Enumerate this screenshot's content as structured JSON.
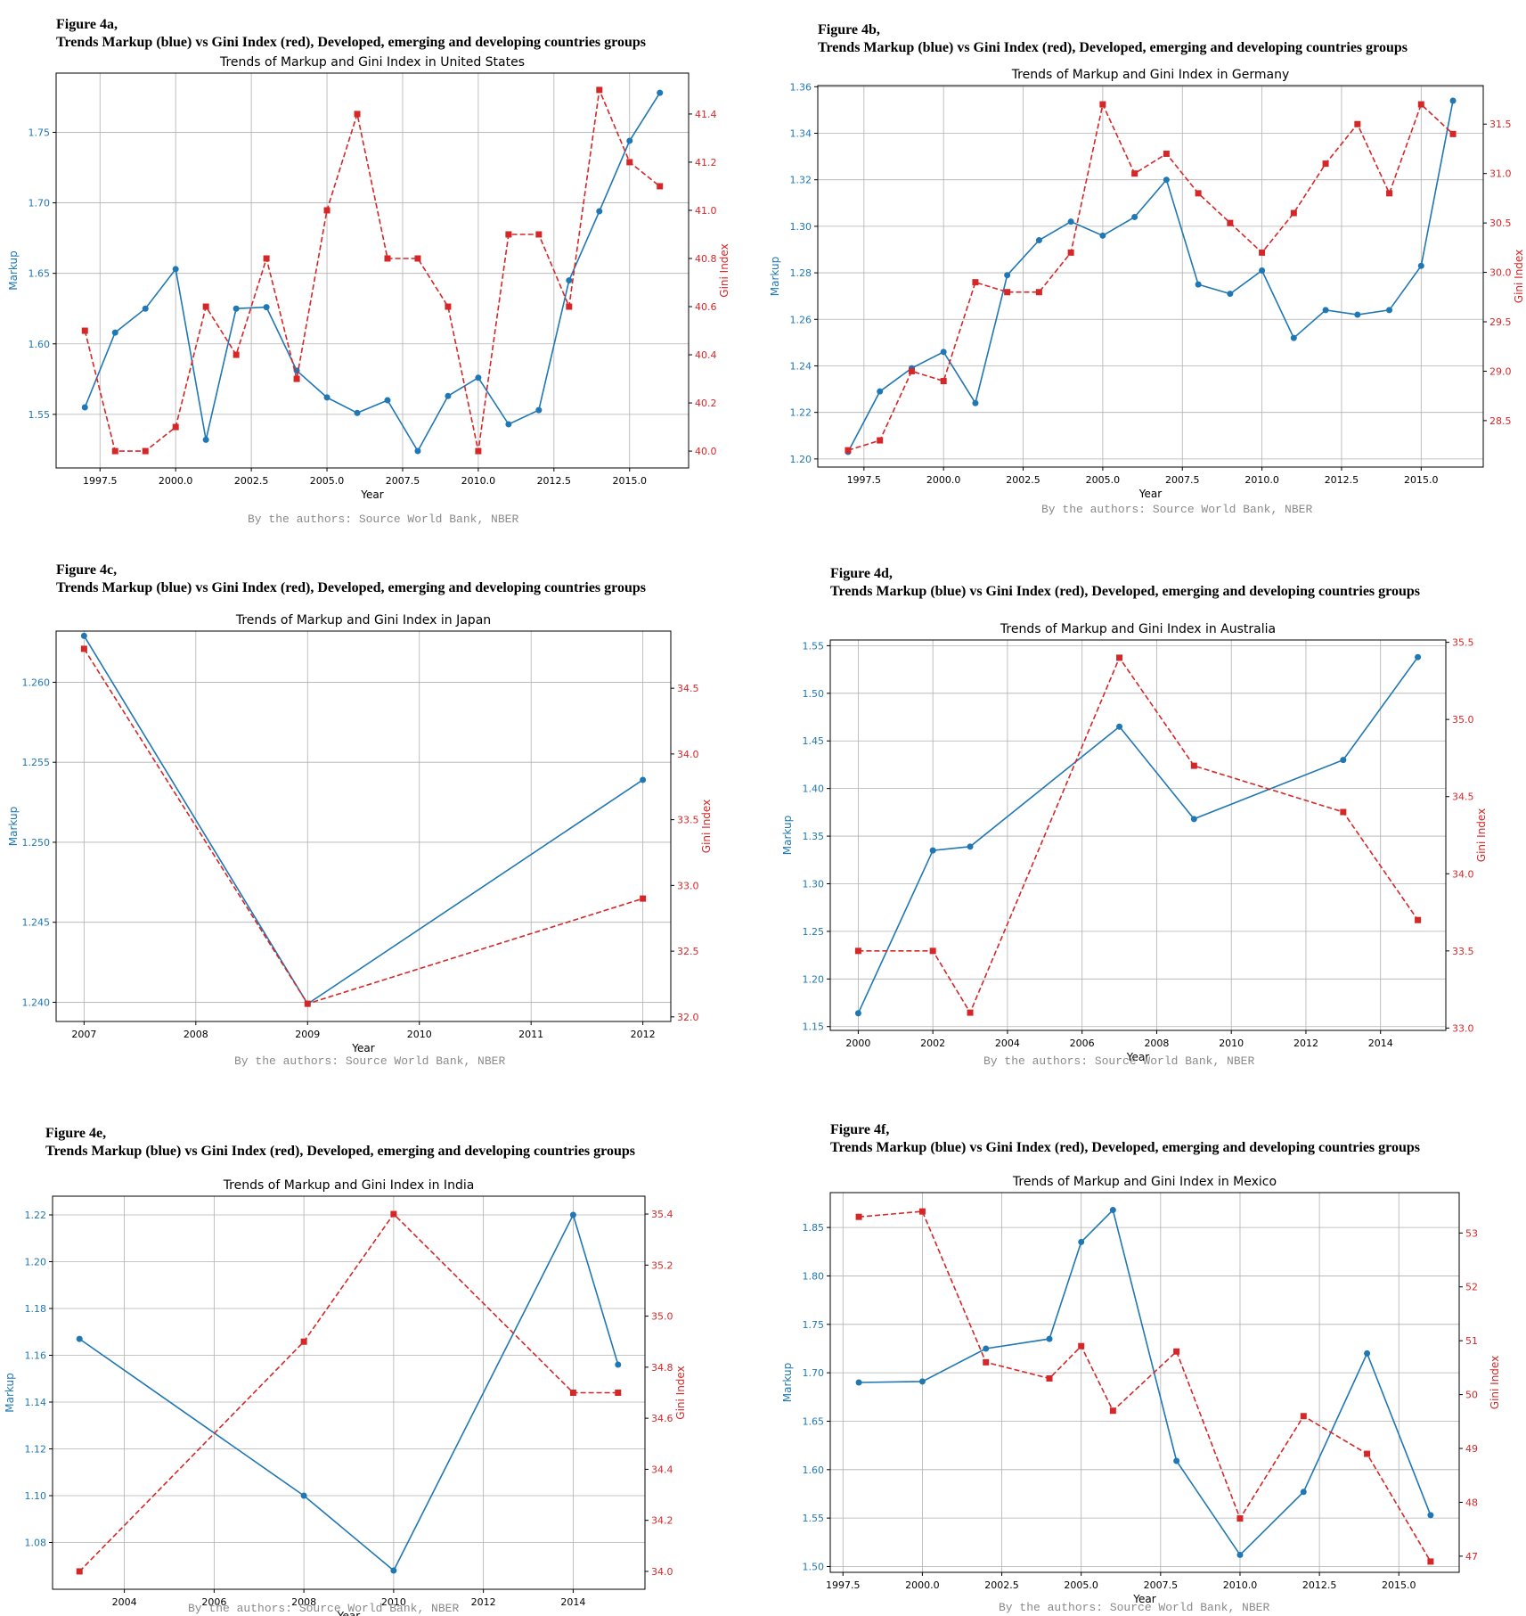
{
  "colors": {
    "markup": "#1f77b4",
    "gini": "#d62728",
    "grid": "#b0b0b0",
    "axis": "#000000"
  },
  "figures": [
    {
      "label": "Figure 4a,",
      "caption": "Trends Markup (blue) vs Gini Index (red), Developed, emerging and developing countries groups",
      "source": "By the authors: Source World Bank, NBER",
      "chart_data": {
        "type": "line",
        "title": "Trends of Markup and Gini Index in United States",
        "xlabel": "Year",
        "ylabel": "Markup",
        "y2label": "Gini Index",
        "xlim": [
          1996.05,
          2016.95
        ],
        "ylim": [
          1.512,
          1.792
        ],
        "y2lim": [
          39.93,
          41.57
        ],
        "xticks": [
          1997.5,
          2000.0,
          2002.5,
          2005.0,
          2007.5,
          2010.0,
          2012.5,
          2015.0
        ],
        "xtick_labels": [
          "1997.5",
          "2000.0",
          "2002.5",
          "2005.0",
          "2007.5",
          "2010.0",
          "2012.5",
          "2015.0"
        ],
        "yticks": [
          1.55,
          1.6,
          1.65,
          1.7,
          1.75
        ],
        "ytick_labels": [
          "1.55",
          "1.60",
          "1.65",
          "1.70",
          "1.75"
        ],
        "y2ticks": [
          40.0,
          40.2,
          40.4,
          40.6,
          40.8,
          41.0,
          41.2,
          41.4
        ],
        "y2tick_labels": [
          "40.0",
          "40.2",
          "40.4",
          "40.6",
          "40.8",
          "41.0",
          "41.2",
          "41.4"
        ],
        "grid": true,
        "series": [
          {
            "name": "Markup",
            "axis": "left",
            "style": "solid",
            "marker": "circle",
            "x": [
              1997,
              1998,
              1999,
              2000,
              2001,
              2002,
              2003,
              2004,
              2005,
              2006,
              2007,
              2008,
              2009,
              2010,
              2011,
              2012,
              2013,
              2014,
              2015,
              2016
            ],
            "values": [
              1.555,
              1.608,
              1.625,
              1.653,
              1.532,
              1.625,
              1.626,
              1.581,
              1.562,
              1.551,
              1.56,
              1.524,
              1.563,
              1.576,
              1.543,
              1.553,
              1.645,
              1.694,
              1.744,
              1.778
            ]
          },
          {
            "name": "Gini Index",
            "axis": "right",
            "style": "dashed",
            "marker": "square",
            "x": [
              1997,
              1998,
              1999,
              2000,
              2001,
              2002,
              2003,
              2004,
              2005,
              2006,
              2007,
              2008,
              2009,
              2010,
              2011,
              2012,
              2013,
              2014,
              2015,
              2016
            ],
            "values": [
              40.5,
              40.0,
              40.0,
              40.1,
              40.6,
              40.4,
              40.8,
              40.3,
              41.0,
              41.4,
              40.8,
              40.8,
              40.6,
              40.0,
              40.9,
              40.9,
              40.6,
              41.5,
              41.2,
              41.1
            ]
          }
        ]
      }
    },
    {
      "label": "Figure 4b,",
      "caption": "Trends Markup (blue) vs Gini Index (red), Developed, emerging and developing countries groups",
      "source": "By the authors: Source World Bank, NBER",
      "chart_data": {
        "type": "line",
        "title": "Trends of Markup and Gini Index in Germany",
        "xlabel": "Year",
        "ylabel": "Markup",
        "y2label": "Gini Index",
        "xlim": [
          1996.05,
          2016.95
        ],
        "ylim": [
          1.1965,
          1.3605
        ],
        "y2lim": [
          28.03,
          31.89
        ],
        "xticks": [
          1997.5,
          2000.0,
          2002.5,
          2005.0,
          2007.5,
          2010.0,
          2012.5,
          2015.0
        ],
        "xtick_labels": [
          "1997.5",
          "2000.0",
          "2002.5",
          "2005.0",
          "2007.5",
          "2010.0",
          "2012.5",
          "2015.0"
        ],
        "yticks": [
          1.2,
          1.22,
          1.24,
          1.26,
          1.28,
          1.3,
          1.32,
          1.34,
          1.36
        ],
        "ytick_labels": [
          "1.20",
          "1.22",
          "1.24",
          "1.26",
          "1.28",
          "1.30",
          "1.32",
          "1.34",
          "1.36"
        ],
        "y2ticks": [
          28.5,
          29.0,
          29.5,
          30.0,
          30.5,
          31.0,
          31.5
        ],
        "y2tick_labels": [
          "28.5",
          "29.0",
          "29.5",
          "30.0",
          "30.5",
          "31.0",
          "31.5"
        ],
        "grid": true,
        "series": [
          {
            "name": "Markup",
            "axis": "left",
            "style": "solid",
            "marker": "circle",
            "x": [
              1997,
              1998,
              1999,
              2000,
              2001,
              2002,
              2003,
              2004,
              2005,
              2006,
              2007,
              2008,
              2009,
              2010,
              2011,
              2012,
              2013,
              2014,
              2015,
              2016
            ],
            "values": [
              1.203,
              1.229,
              1.239,
              1.246,
              1.224,
              1.279,
              1.294,
              1.302,
              1.296,
              1.304,
              1.32,
              1.275,
              1.271,
              1.281,
              1.252,
              1.264,
              1.262,
              1.264,
              1.283,
              1.354
            ]
          },
          {
            "name": "Gini Index",
            "axis": "right",
            "style": "dashed",
            "marker": "square",
            "x": [
              1997,
              1998,
              1999,
              2000,
              2001,
              2002,
              2003,
              2004,
              2005,
              2006,
              2007,
              2008,
              2009,
              2010,
              2011,
              2012,
              2013,
              2014,
              2015,
              2016
            ],
            "values": [
              28.2,
              28.3,
              29.0,
              28.9,
              29.9,
              29.8,
              29.8,
              30.2,
              31.7,
              31.0,
              31.2,
              30.8,
              30.5,
              30.2,
              30.6,
              31.1,
              31.5,
              30.8,
              31.7,
              31.4
            ]
          }
        ]
      }
    },
    {
      "label": "Figure 4c,",
      "caption": "Trends Markup (blue) vs Gini Index (red), Developed, emerging and developing countries groups",
      "source": "By the authors: Source World Bank, NBER",
      "chart_data": {
        "type": "line",
        "title": "Trends of Markup and Gini Index in Japan",
        "xlabel": "Year",
        "ylabel": "Markup",
        "y2label": "Gini Index",
        "xlim": [
          2006.75,
          2012.25
        ],
        "ylim": [
          1.2388,
          1.2632
        ],
        "y2lim": [
          31.965,
          34.935
        ],
        "xticks": [
          2007,
          2008,
          2009,
          2010,
          2011,
          2012
        ],
        "xtick_labels": [
          "2007",
          "2008",
          "2009",
          "2010",
          "2011",
          "2012"
        ],
        "yticks": [
          1.24,
          1.245,
          1.25,
          1.255,
          1.26
        ],
        "ytick_labels": [
          "1.240",
          "1.245",
          "1.250",
          "1.255",
          "1.260"
        ],
        "y2ticks": [
          32.0,
          32.5,
          33.0,
          33.5,
          34.0,
          34.5
        ],
        "y2tick_labels": [
          "32.0",
          "32.5",
          "33.0",
          "33.5",
          "34.0",
          "34.5"
        ],
        "grid": true,
        "series": [
          {
            "name": "Markup",
            "axis": "left",
            "style": "solid",
            "marker": "circle",
            "x": [
              2007,
              2009,
              2012
            ],
            "values": [
              1.2629,
              1.2399,
              1.2539
            ]
          },
          {
            "name": "Gini Index",
            "axis": "right",
            "style": "dashed",
            "marker": "square",
            "x": [
              2007,
              2009,
              2012
            ],
            "values": [
              34.8,
              32.1,
              32.9
            ]
          }
        ]
      }
    },
    {
      "label": "Figure 4d,",
      "caption": "Trends Markup (blue) vs Gini Index (red), Developed, emerging and developing countries groups",
      "source": "By the authors: Source World Bank, NBER",
      "chart_data": {
        "type": "line",
        "title": "Trends of Markup and Gini Index in Australia",
        "xlabel": "Year",
        "ylabel": "Markup",
        "y2label": "Gini Index",
        "xlim": [
          1999.25,
          2015.75
        ],
        "ylim": [
          1.146,
          1.556
        ],
        "y2lim": [
          32.985,
          35.515
        ],
        "xticks": [
          2000,
          2002,
          2004,
          2006,
          2008,
          2010,
          2012,
          2014
        ],
        "xtick_labels": [
          "2000",
          "2002",
          "2004",
          "2006",
          "2008",
          "2010",
          "2012",
          "2014"
        ],
        "yticks": [
          1.15,
          1.2,
          1.25,
          1.3,
          1.35,
          1.4,
          1.45,
          1.5,
          1.55
        ],
        "ytick_labels": [
          "1.15",
          "1.20",
          "1.25",
          "1.30",
          "1.35",
          "1.40",
          "1.45",
          "1.50",
          "1.55"
        ],
        "y2ticks": [
          33.0,
          33.5,
          34.0,
          34.5,
          35.0,
          35.5
        ],
        "y2tick_labels": [
          "33.0",
          "33.5",
          "34.0",
          "34.5",
          "35.0",
          "35.5"
        ],
        "grid": true,
        "series": [
          {
            "name": "Markup",
            "axis": "left",
            "style": "solid",
            "marker": "circle",
            "x": [
              2000,
              2002,
              2003,
              2007,
              2009,
              2013,
              2015
            ],
            "values": [
              1.164,
              1.335,
              1.339,
              1.465,
              1.368,
              1.43,
              1.538
            ]
          },
          {
            "name": "Gini Index",
            "axis": "right",
            "style": "dashed",
            "marker": "square",
            "x": [
              2000,
              2002,
              2003,
              2007,
              2009,
              2013,
              2015
            ],
            "values": [
              33.5,
              33.5,
              33.1,
              35.4,
              34.7,
              34.4,
              33.7
            ]
          }
        ]
      }
    },
    {
      "label": "Figure 4e,",
      "caption": "Trends Markup (blue) vs Gini Index (red), Developed, emerging and developing countries groups",
      "source": "By the authors: Source World Bank, NBER",
      "chart_data": {
        "type": "line",
        "title": "Trends of Markup and Gini Index in India",
        "xlabel": "Year",
        "ylabel": "Markup",
        "y2label": "Gini Index",
        "xlim": [
          2002.4,
          2015.6
        ],
        "ylim": [
          1.06,
          1.228
        ],
        "y2lim": [
          33.93,
          35.47
        ],
        "xticks": [
          2004,
          2006,
          2008,
          2010,
          2012,
          2014
        ],
        "xtick_labels": [
          "2004",
          "2006",
          "2008",
          "2010",
          "2012",
          "2014"
        ],
        "yticks": [
          1.08,
          1.1,
          1.12,
          1.14,
          1.16,
          1.18,
          1.2,
          1.22
        ],
        "ytick_labels": [
          "1.08",
          "1.10",
          "1.12",
          "1.14",
          "1.16",
          "1.18",
          "1.20",
          "1.22"
        ],
        "y2ticks": [
          34.0,
          34.2,
          34.4,
          34.6,
          34.8,
          35.0,
          35.2,
          35.4
        ],
        "y2tick_labels": [
          "34.0",
          "34.2",
          "34.4",
          "34.6",
          "34.8",
          "35.0",
          "35.2",
          "35.4"
        ],
        "grid": true,
        "series": [
          {
            "name": "Markup",
            "axis": "left",
            "style": "solid",
            "marker": "circle",
            "x": [
              2003,
              2008,
              2010,
              2014,
              2015
            ],
            "values": [
              1.167,
              1.1,
              1.068,
              1.22,
              1.156
            ]
          },
          {
            "name": "Gini Index",
            "axis": "right",
            "style": "dashed",
            "marker": "square",
            "x": [
              2003,
              2008,
              2010,
              2014,
              2015
            ],
            "values": [
              34.0,
              34.9,
              35.4,
              34.7,
              34.7
            ]
          }
        ]
      }
    },
    {
      "label": "Figure 4f,",
      "caption": "Trends Markup (blue) vs Gini Index (red), Developed, emerging and developing countries groups",
      "source": "By the authors: Source World Bank, NBER",
      "chart_data": {
        "type": "line",
        "title": "Trends of Markup and Gini Index in Mexico",
        "xlabel": "Year",
        "ylabel": "Markup",
        "y2label": "Gini Index",
        "xlim": [
          1997.1,
          2016.9
        ],
        "ylim": [
          1.494,
          1.886
        ],
        "y2lim": [
          46.7,
          53.75
        ],
        "xticks": [
          1997.5,
          2000.0,
          2002.5,
          2005.0,
          2007.5,
          2010.0,
          2012.5,
          2015.0
        ],
        "xtick_labels": [
          "1997.5",
          "2000.0",
          "2002.5",
          "2005.0",
          "2007.5",
          "2010.0",
          "2012.5",
          "2015.0"
        ],
        "yticks": [
          1.5,
          1.55,
          1.6,
          1.65,
          1.7,
          1.75,
          1.8,
          1.85
        ],
        "ytick_labels": [
          "1.50",
          "1.55",
          "1.60",
          "1.65",
          "1.70",
          "1.75",
          "1.80",
          "1.85"
        ],
        "y2ticks": [
          47,
          48,
          49,
          50,
          51,
          52,
          53
        ],
        "y2tick_labels": [
          "47",
          "48",
          "49",
          "50",
          "51",
          "52",
          "53"
        ],
        "grid": true,
        "series": [
          {
            "name": "Markup",
            "axis": "left",
            "style": "solid",
            "marker": "circle",
            "x": [
              1998,
              2000,
              2002,
              2004,
              2005,
              2006,
              2008,
              2010,
              2012,
              2014,
              2016
            ],
            "values": [
              1.69,
              1.691,
              1.725,
              1.735,
              1.835,
              1.868,
              1.609,
              1.512,
              1.577,
              1.72,
              1.553
            ]
          },
          {
            "name": "Gini Index",
            "axis": "right",
            "style": "dashed",
            "marker": "square",
            "x": [
              1998,
              2000,
              2002,
              2004,
              2005,
              2006,
              2008,
              2010,
              2012,
              2014,
              2016
            ],
            "values": [
              53.3,
              53.4,
              50.6,
              50.3,
              50.9,
              49.7,
              50.8,
              47.7,
              49.6,
              48.9,
              46.9
            ]
          }
        ]
      }
    }
  ]
}
